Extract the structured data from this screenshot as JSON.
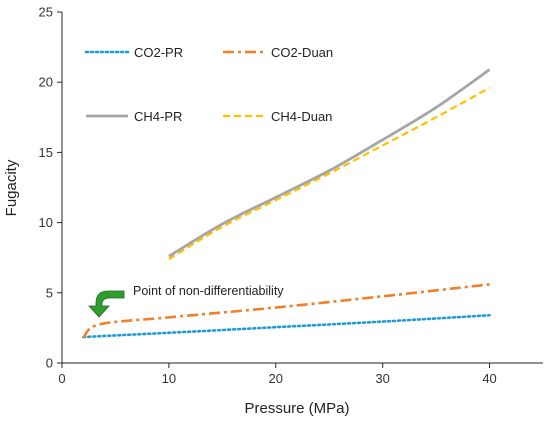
{
  "chart_data": {
    "type": "line",
    "xlabel": "Pressure (MPa)",
    "ylabel": "Fugacity",
    "xlim": [
      0,
      45
    ],
    "ylim": [
      0,
      25
    ],
    "xticks": [
      0,
      10,
      20,
      30,
      40
    ],
    "yticks": [
      0,
      5,
      10,
      15,
      20,
      25
    ],
    "grid": false,
    "legend_position": "top-left",
    "series": [
      {
        "name": "CO2-PR",
        "style": "dotted",
        "color": "#1e9bd7",
        "x": [
          2,
          10,
          20,
          30,
          40
        ],
        "y": [
          1.85,
          2.15,
          2.55,
          2.95,
          3.4
        ]
      },
      {
        "name": "CO2-Duan",
        "style": "dashdot",
        "color": "#f07f28",
        "x": [
          2,
          3.5,
          10,
          20,
          30,
          40
        ],
        "y": [
          1.8,
          2.75,
          3.25,
          3.95,
          4.75,
          5.6
        ]
      },
      {
        "name": "CH4-PR",
        "style": "solid",
        "color": "#a6a6a6",
        "x": [
          10,
          15,
          20,
          25,
          30,
          35,
          40
        ],
        "y": [
          7.6,
          9.9,
          11.8,
          13.7,
          15.9,
          18.2,
          20.9
        ]
      },
      {
        "name": "CH4-Duan",
        "style": "dashed",
        "color": "#ffc000",
        "x": [
          10,
          15,
          20,
          25,
          30,
          35,
          40
        ],
        "y": [
          7.4,
          9.7,
          11.6,
          13.5,
          15.5,
          17.5,
          19.6
        ]
      }
    ],
    "annotations": [
      {
        "text": "Point of non-differentiability",
        "arrow_color": "#2e9c2e"
      }
    ]
  }
}
